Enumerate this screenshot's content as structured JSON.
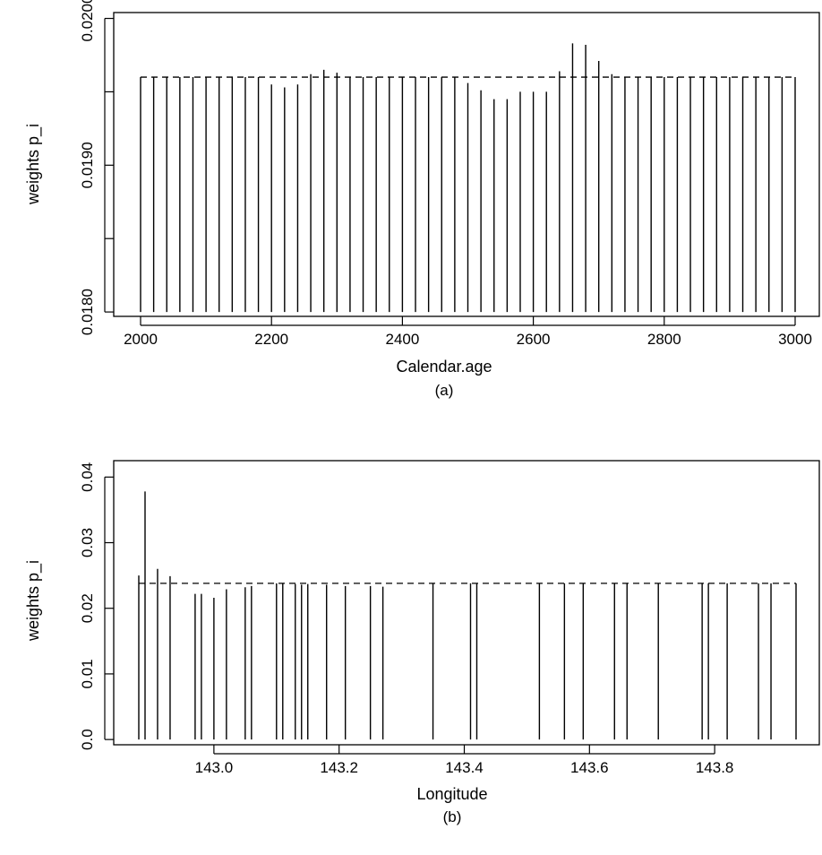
{
  "chart_data": [
    {
      "type": "bar",
      "panel": "(a)",
      "caption": "(a)",
      "xlabel": "Calendar.age",
      "ylabel": "weights p_i",
      "xlim": [
        2000,
        3000
      ],
      "ylim": [
        0.018,
        0.02
      ],
      "yrange_shown": [
        0.01797,
        0.02004
      ],
      "xticks": [
        2000,
        2200,
        2400,
        2600,
        2800,
        3000
      ],
      "xtick_labels": [
        "2000",
        "2200",
        "2400",
        "2600",
        "2800",
        "3000"
      ],
      "yticks": [
        0.018,
        0.0185,
        0.019,
        0.0195,
        0.02
      ],
      "ytick_labels": {
        "0.018": "0.0180",
        "0.019": "0.0190",
        "0.02": "0.0200"
      },
      "reference_line": 0.0196,
      "x": [
        2000,
        2020,
        2040,
        2060,
        2080,
        2100,
        2120,
        2140,
        2160,
        2180,
        2200,
        2220,
        2240,
        2260,
        2280,
        2300,
        2320,
        2340,
        2360,
        2380,
        2400,
        2420,
        2440,
        2460,
        2480,
        2500,
        2520,
        2540,
        2560,
        2580,
        2600,
        2620,
        2640,
        2660,
        2680,
        2700,
        2720,
        2740,
        2760,
        2780,
        2800,
        2820,
        2840,
        2860,
        2880,
        2900,
        2920,
        2940,
        2960,
        2980,
        3000
      ],
      "values": [
        0.0196,
        0.0196,
        0.0196,
        0.0196,
        0.0196,
        0.0196,
        0.0196,
        0.0196,
        0.0196,
        0.0196,
        0.01955,
        0.01953,
        0.01955,
        0.01962,
        0.01965,
        0.01963,
        0.0196,
        0.0196,
        0.0196,
        0.0196,
        0.0196,
        0.0196,
        0.0196,
        0.0196,
        0.0196,
        0.01956,
        0.01951,
        0.01945,
        0.01945,
        0.0195,
        0.0195,
        0.0195,
        0.01964,
        0.01983,
        0.01982,
        0.01971,
        0.01962,
        0.0196,
        0.0196,
        0.0196,
        0.0196,
        0.0196,
        0.0196,
        0.0196,
        0.0196,
        0.0196,
        0.0196,
        0.0196,
        0.0196,
        0.0196,
        0.0196
      ],
      "grid": false,
      "legend": "none"
    },
    {
      "type": "bar",
      "panel": "(b)",
      "caption": "(b)",
      "xlabel": "Longitude",
      "ylabel": "weights p_i",
      "xlim": [
        142.88,
        143.93
      ],
      "ylim": [
        0.0,
        0.04
      ],
      "yrange_shown": [
        -0.0008,
        0.0425
      ],
      "xticks": [
        143.0,
        143.2,
        143.4,
        143.6,
        143.8
      ],
      "xtick_labels": [
        "143.0",
        "143.2",
        "143.4",
        "143.6",
        "143.8"
      ],
      "yticks": [
        0.0,
        0.01,
        0.02,
        0.03,
        0.04
      ],
      "ytick_labels": {
        "0": "0.0",
        "0.01": "0.01",
        "0.02": "0.02",
        "0.03": "0.03",
        "0.04": "0.04"
      },
      "reference_line": 0.0238,
      "x": [
        142.88,
        142.89,
        142.91,
        142.93,
        142.97,
        142.98,
        143.0,
        143.02,
        143.05,
        143.06,
        143.1,
        143.11,
        143.13,
        143.14,
        143.15,
        143.18,
        143.21,
        143.25,
        143.27,
        143.35,
        143.41,
        143.42,
        143.52,
        143.56,
        143.59,
        143.64,
        143.66,
        143.71,
        143.78,
        143.79,
        143.82,
        143.87,
        143.89,
        143.93
      ],
      "values": [
        0.025,
        0.0378,
        0.026,
        0.0249,
        0.0222,
        0.0222,
        0.0216,
        0.0229,
        0.0232,
        0.0234,
        0.0238,
        0.0238,
        0.0237,
        0.0236,
        0.0237,
        0.0236,
        0.0234,
        0.0234,
        0.0233,
        0.0238,
        0.0238,
        0.0238,
        0.0238,
        0.0238,
        0.0238,
        0.0238,
        0.0238,
        0.0238,
        0.0238,
        0.0238,
        0.0238,
        0.0238,
        0.0238,
        0.0238
      ],
      "grid": false,
      "legend": "none"
    }
  ]
}
